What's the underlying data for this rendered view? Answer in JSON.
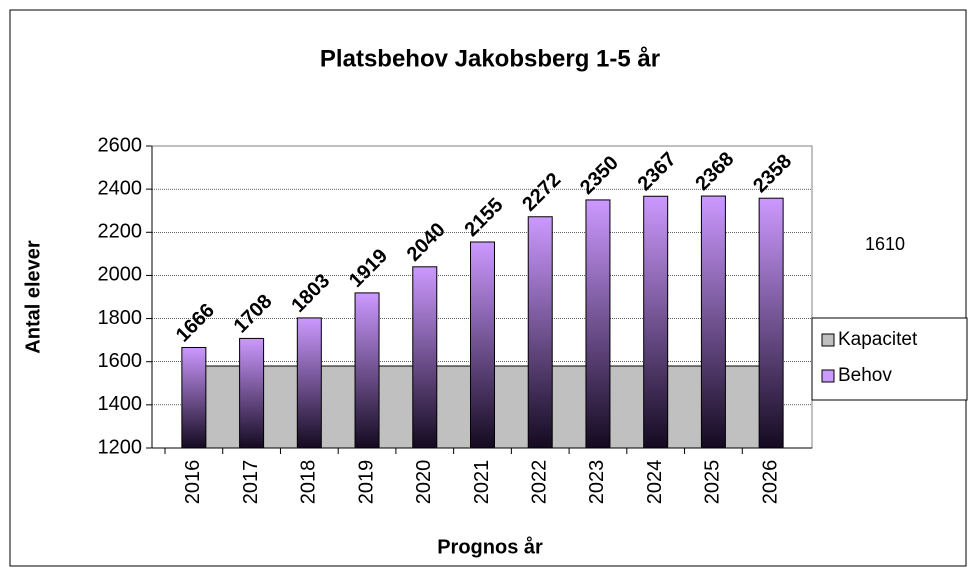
{
  "chart_data": {
    "type": "bar",
    "title": "Platsbehov Jakobsberg 1-5 år",
    "x_label": "Prognos år",
    "y_label": "Antal elever",
    "annotation": "1610",
    "categories": [
      "2016",
      "2017",
      "2018",
      "2019",
      "2020",
      "2021",
      "2022",
      "2023",
      "2024",
      "2025",
      "2026"
    ],
    "series": [
      {
        "name": "Kapacitet",
        "type": "area",
        "color": "#c0c0c0",
        "values": [
          1580,
          1580,
          1580,
          1580,
          1580,
          1580,
          1580,
          1580,
          1580,
          1580,
          1580
        ]
      },
      {
        "name": "Behov",
        "type": "bar",
        "color": "#cc99ff",
        "values": [
          1666,
          1708,
          1803,
          1919,
          2040,
          2155,
          2272,
          2350,
          2367,
          2368,
          2358
        ]
      }
    ],
    "ylim": [
      1200,
      2600
    ],
    "yticks": [
      1200,
      1400,
      1600,
      1800,
      2000,
      2200,
      2400,
      2600
    ],
    "grid": true,
    "legend": "right"
  }
}
